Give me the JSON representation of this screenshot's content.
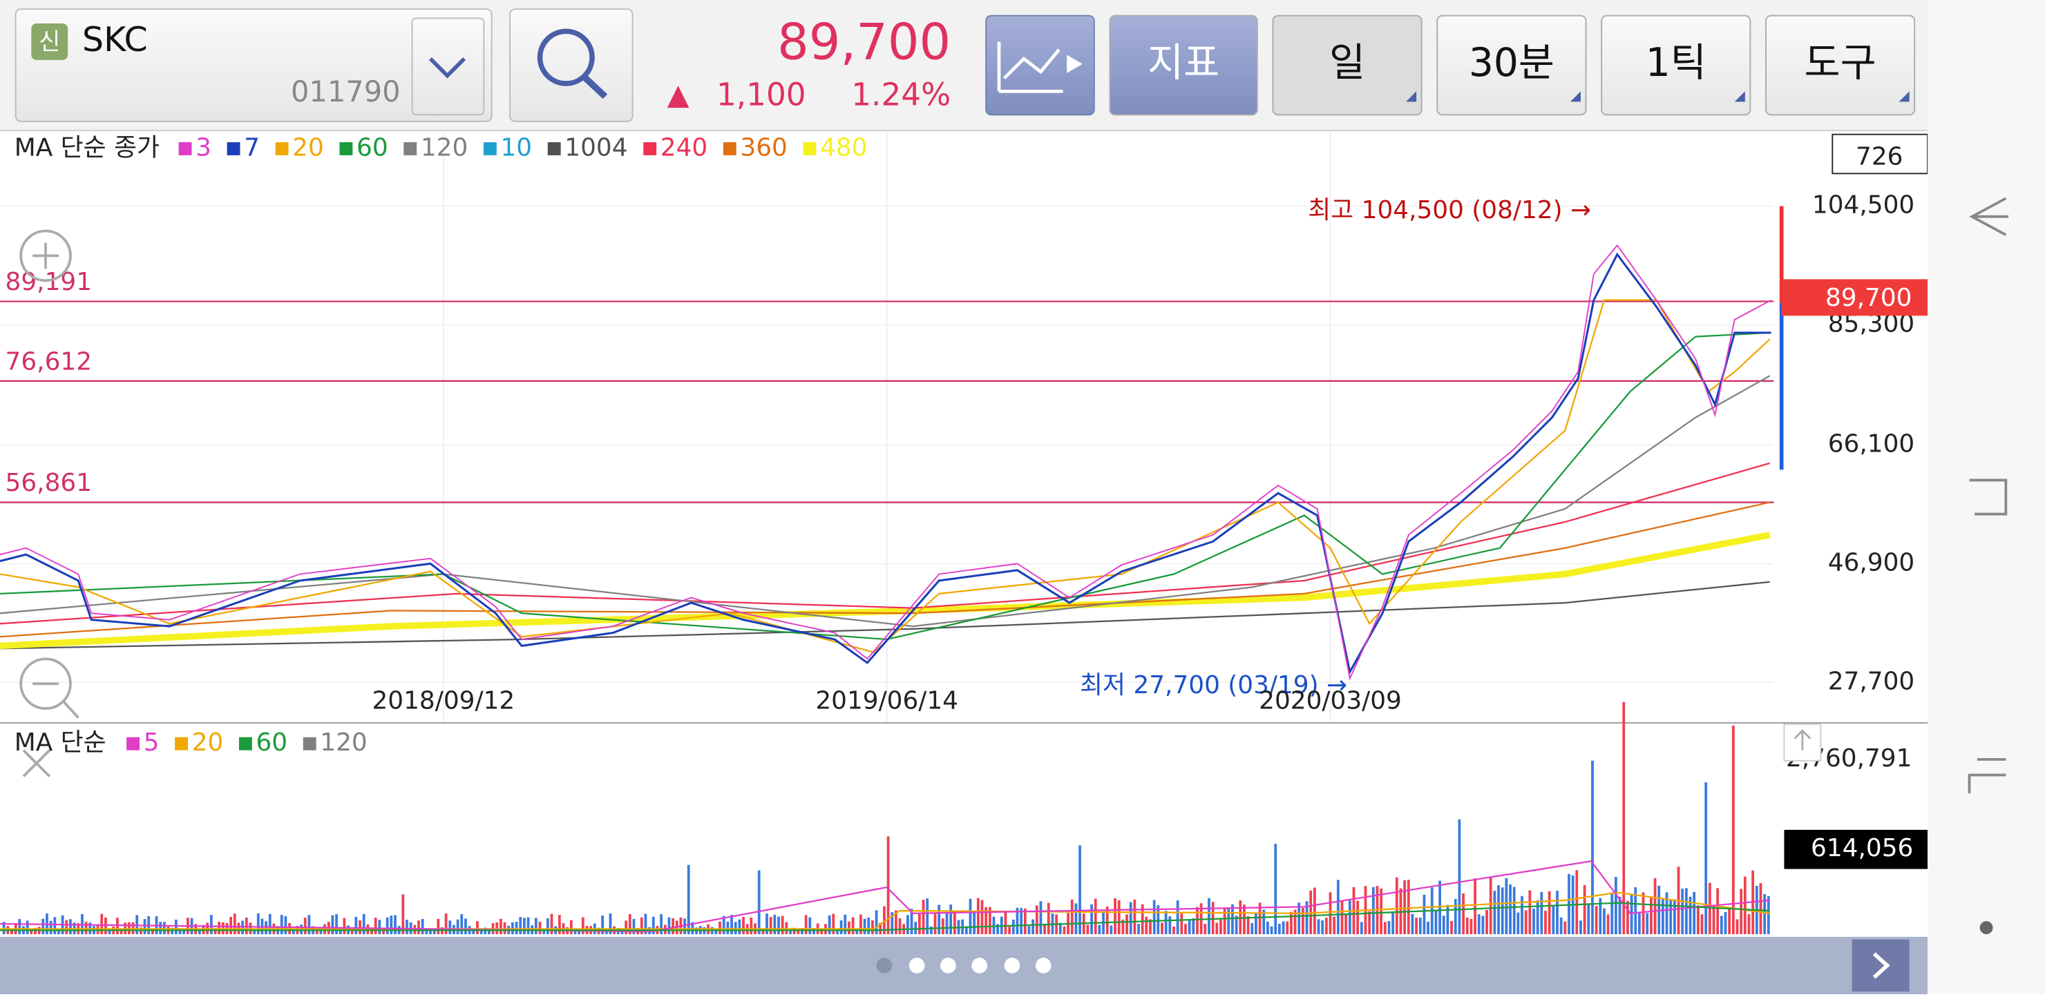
{
  "header": {
    "badge": "신",
    "name": "SKC",
    "code": "011790",
    "price": "89,700",
    "change_arrow": "▲",
    "change": "1,100",
    "change_pct": "1.24%",
    "buttons": [
      "지표",
      "일",
      "30분",
      "1틱",
      "도구"
    ]
  },
  "price_chart": {
    "legend_label": "MA 단순 종가",
    "legend_items": [
      {
        "label": "3",
        "color": "#e03cc8"
      },
      {
        "label": "7",
        "color": "#1a3fb8"
      },
      {
        "label": "20",
        "color": "#f0a800"
      },
      {
        "label": "60",
        "color": "#1a9a3a"
      },
      {
        "label": "120",
        "color": "#808080"
      },
      {
        "label": "10",
        "color": "#20a0d0"
      },
      {
        "label": "1004",
        "color": "#505050"
      },
      {
        "label": "240",
        "color": "#f03050"
      },
      {
        "label": "360",
        "color": "#e07010"
      },
      {
        "label": "480",
        "color": "#f5f020"
      }
    ],
    "axis_labels": [
      "104,500",
      "85,300",
      "66,100",
      "46,900",
      "27,700"
    ],
    "count_box": "726",
    "current_price": "89,700",
    "level_lines": [
      "89,191",
      "76,612",
      "56,861"
    ],
    "high_note": "최고 104,500 (08/12) →",
    "low_note": "최저 27,700 (03/19) →",
    "dates": [
      "2018/09/12",
      "2019/06/14",
      "2020/03/09"
    ]
  },
  "volume_chart": {
    "legend_label": "MA 단순",
    "legend_items": [
      {
        "label": "5",
        "color": "#e03cc8"
      },
      {
        "label": "20",
        "color": "#f0a800"
      },
      {
        "label": "60",
        "color": "#1a9a3a"
      },
      {
        "label": "120",
        "color": "#808080"
      }
    ],
    "axis_max": "2,760,791",
    "current_volume": "614,056"
  }
}
